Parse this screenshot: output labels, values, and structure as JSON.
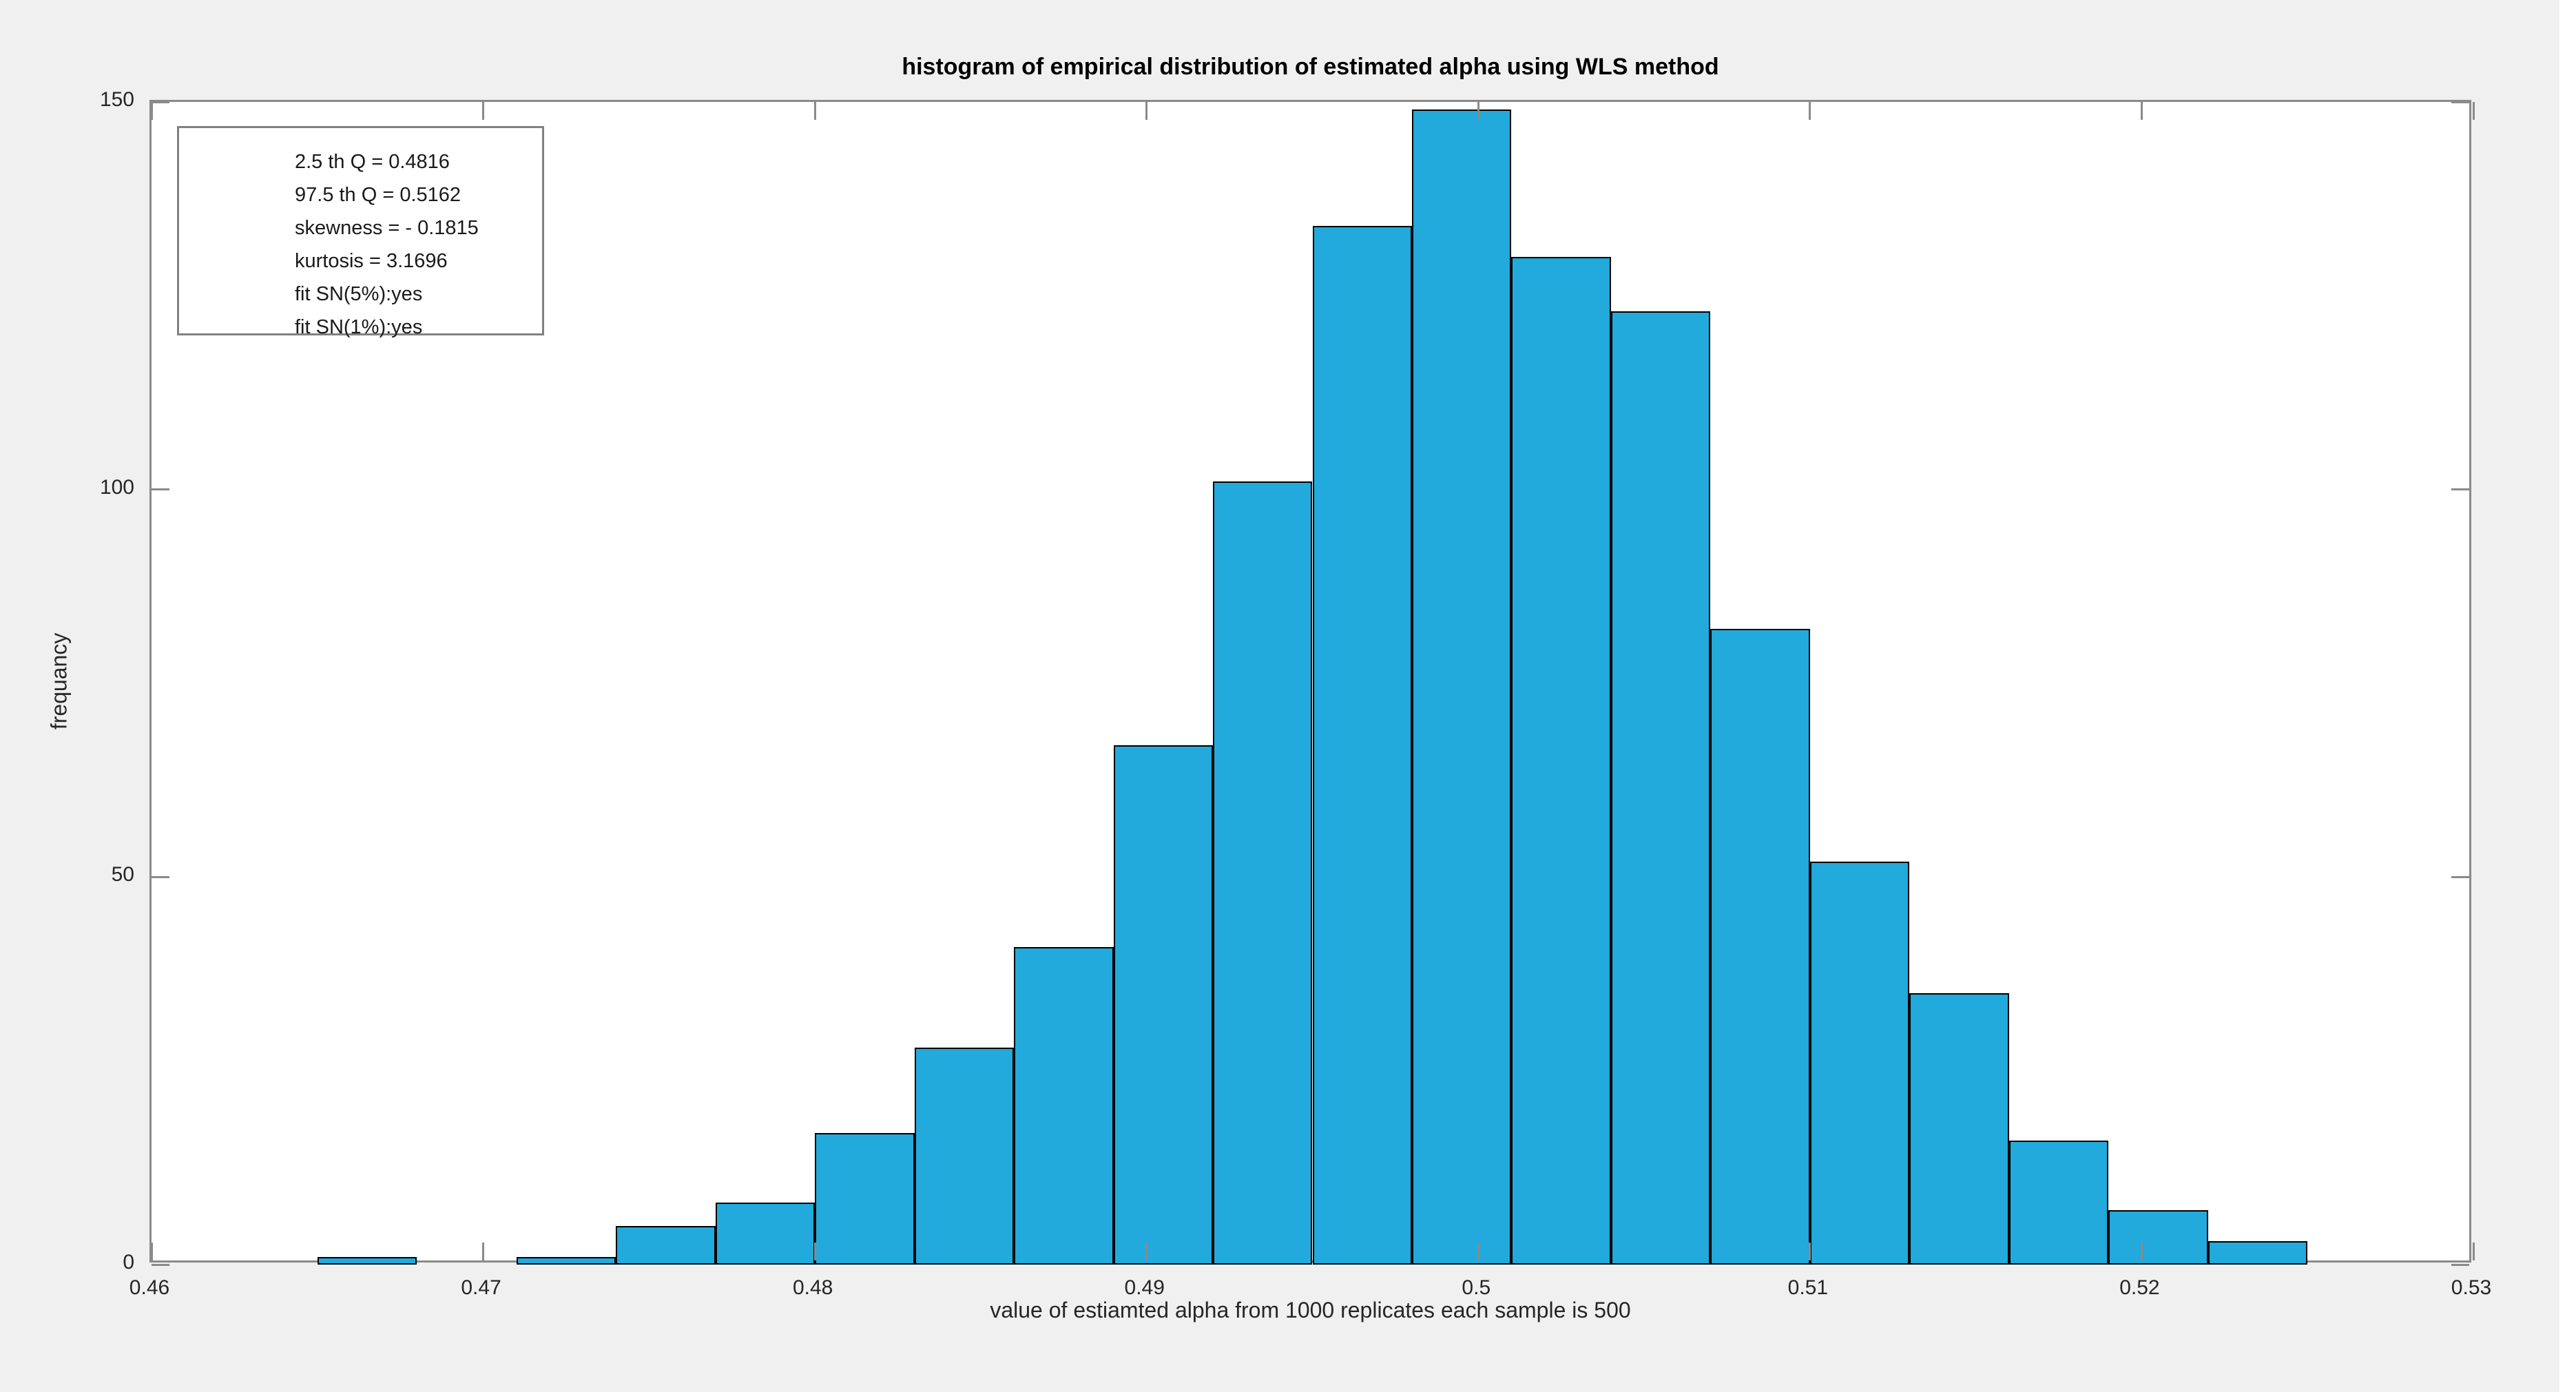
{
  "figure": {
    "background": "#F0F0F0",
    "plot_background": "#FFFFFF",
    "axis_color": "#8A8A8A",
    "text_color": "#262626"
  },
  "chart_data": {
    "type": "bar",
    "subtype": "histogram",
    "title": "histogram of empirical distribution of estimated alpha using WLS method",
    "xlabel": "value of estiamted alpha from 1000 replicates each sample is 500",
    "ylabel": "frequancy",
    "bin_start": 0.465,
    "bin_width": 0.003,
    "bin_edges": [
      0.465,
      0.468,
      0.471,
      0.474,
      0.477,
      0.48,
      0.483,
      0.486,
      0.489,
      0.492,
      0.495,
      0.498,
      0.501,
      0.504,
      0.507,
      0.51,
      0.513,
      0.516,
      0.519,
      0.522,
      0.525
    ],
    "counts": [
      1,
      0,
      1,
      5,
      8,
      17,
      28,
      41,
      67,
      101,
      134,
      149,
      130,
      123,
      82,
      52,
      35,
      16,
      7,
      3
    ],
    "total_replicates": 1000,
    "xlim": [
      0.46,
      0.53
    ],
    "ylim": [
      0,
      150
    ],
    "x_ticks": [
      0.46,
      0.47,
      0.48,
      0.49,
      0.5,
      0.51,
      0.52,
      0.53
    ],
    "x_tick_labels": [
      "0.46",
      "0.47",
      "0.48",
      "0.49",
      "0.5",
      "0.51",
      "0.52",
      "0.53"
    ],
    "y_ticks": [
      0,
      50,
      100,
      150
    ],
    "y_tick_labels": [
      "0",
      "50",
      "100",
      "150"
    ],
    "grid": false,
    "legend_position": "none",
    "bar_fill": "#21AADB",
    "bar_edge": "#000000",
    "annotation_box_lines": [
      "2.5 th Q = 0.4816",
      "97.5 th Q = 0.5162",
      "skewness = - 0.1815",
      "kurtosis = 3.1696",
      "fit SN(5%):yes",
      "fit SN(1%):yes"
    ]
  }
}
